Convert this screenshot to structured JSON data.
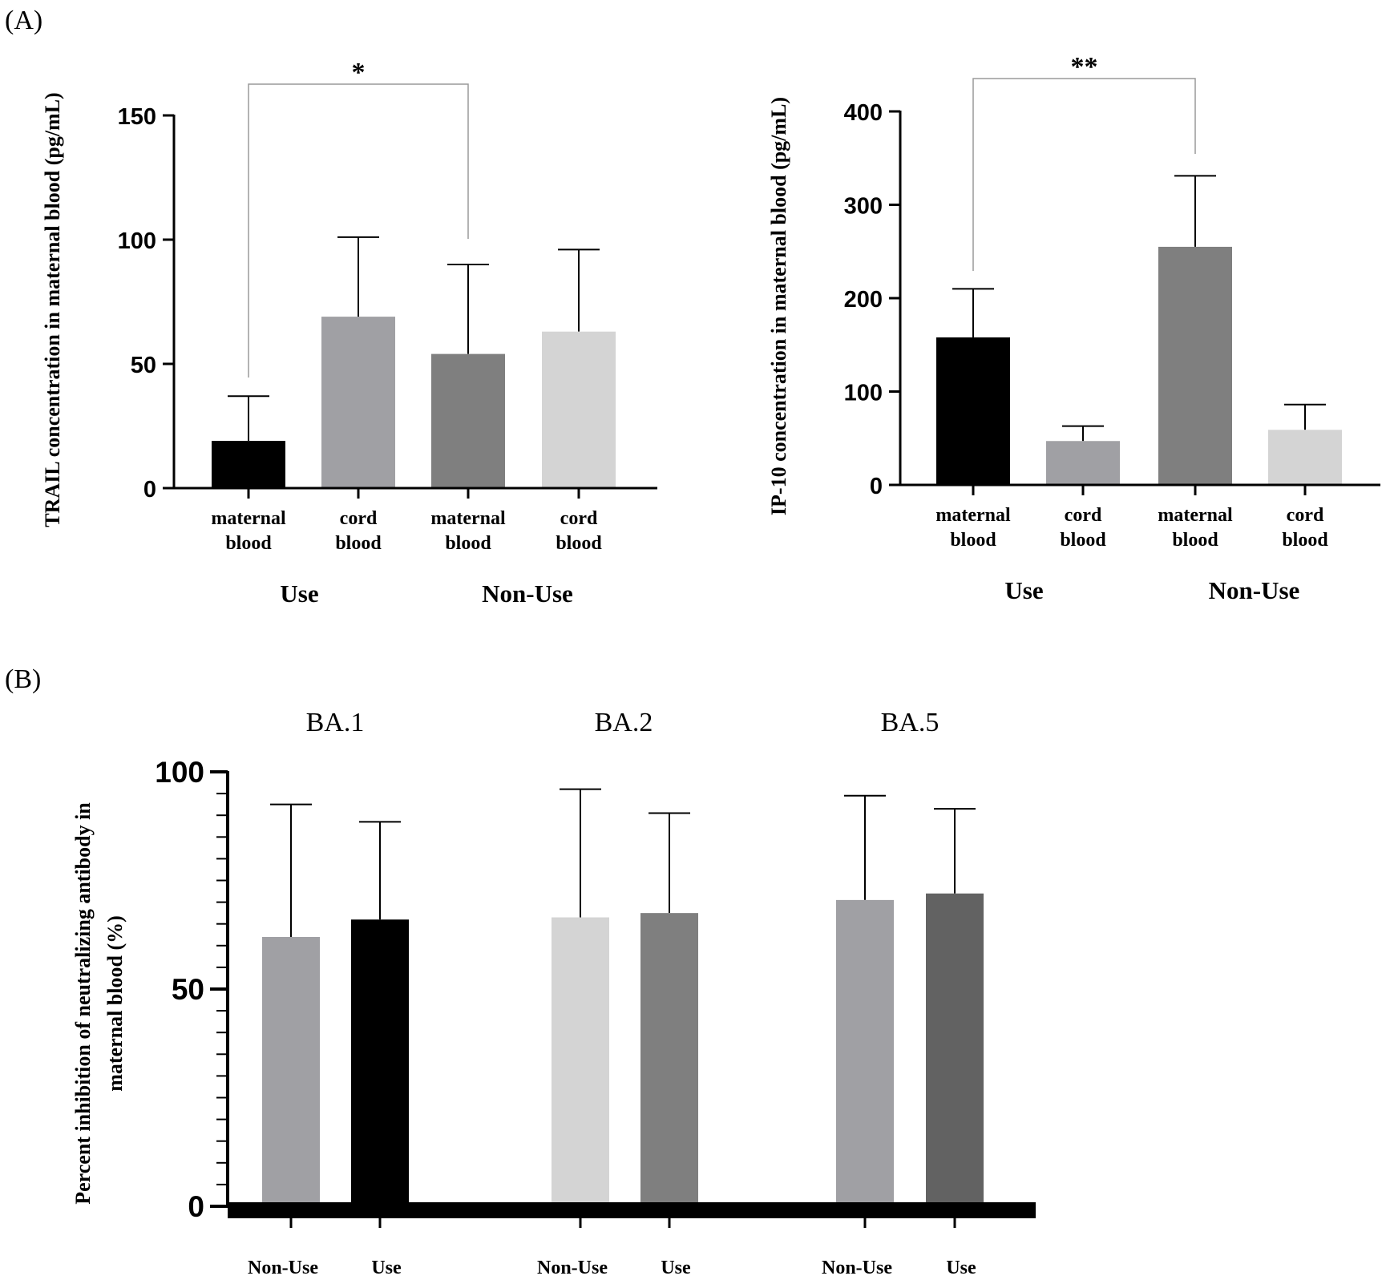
{
  "panel_a_label": "(A)",
  "panel_b_label": "(B)",
  "chart_data": [
    {
      "type": "bar",
      "title": "",
      "ylabel": "TRAIL concentration in maternal blood (pg/mL)",
      "ylim": [
        0,
        150
      ],
      "yticks": [
        "0",
        "50",
        "100",
        "150"
      ],
      "categories": [
        "maternal blood",
        "cord blood",
        "maternal blood",
        "cord blood"
      ],
      "category_lines": [
        [
          "maternal",
          "blood"
        ],
        [
          "cord",
          "blood"
        ],
        [
          "maternal",
          "blood"
        ],
        [
          "cord",
          "blood"
        ]
      ],
      "groups": [
        "Use",
        "Non-Use"
      ],
      "values": [
        19,
        69,
        54,
        63
      ],
      "errors": [
        18,
        32,
        36,
        33
      ],
      "colors": [
        "#000000",
        "#a0a0a4",
        "#7f7f7f",
        "#d4d4d4"
      ],
      "significance": {
        "from": 0,
        "to": 2,
        "label": "*"
      }
    },
    {
      "type": "bar",
      "title": "",
      "ylabel": "IP-10 concentration in maternal blood (pg/mL)",
      "ylim": [
        0,
        400
      ],
      "yticks": [
        "0",
        "100",
        "200",
        "300",
        "400"
      ],
      "categories": [
        "maternal blood",
        "cord blood",
        "maternal blood",
        "cord blood"
      ],
      "category_lines": [
        [
          "maternal",
          "blood"
        ],
        [
          "cord",
          "blood"
        ],
        [
          "maternal",
          "blood"
        ],
        [
          "cord",
          "blood"
        ]
      ],
      "groups": [
        "Use",
        "Non-Use"
      ],
      "values": [
        158,
        47,
        255,
        59
      ],
      "errors": [
        52,
        16,
        76,
        27
      ],
      "colors": [
        "#000000",
        "#a0a0a4",
        "#7f7f7f",
        "#d4d4d4"
      ],
      "significance": {
        "from": 0,
        "to": 2,
        "label": "**"
      }
    },
    {
      "type": "bar",
      "title": "",
      "ylabel_lines": [
        "Percent inhibition of neutralizing antibody in",
        "maternal blood (%)"
      ],
      "ylim": [
        0,
        100
      ],
      "yticks": [
        "0",
        "50",
        "100"
      ],
      "variants": [
        "BA.1",
        "BA.2",
        "BA.5"
      ],
      "series": [
        {
          "name": "Non-Use",
          "values": [
            62,
            66.5,
            70.5
          ],
          "errors": [
            30.5,
            29.5,
            24
          ]
        },
        {
          "name": "Use",
          "values": [
            66,
            67.5,
            72
          ],
          "errors": [
            22.5,
            23,
            19.5
          ]
        }
      ],
      "colors": [
        [
          "#a0a0a4",
          "#000000"
        ],
        [
          "#d4d4d4",
          "#7f7f7f"
        ],
        [
          "#a0a0a4",
          "#626262"
        ]
      ]
    }
  ]
}
